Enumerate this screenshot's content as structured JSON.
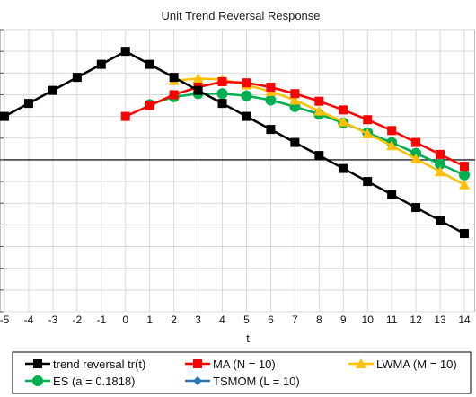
{
  "chart_data": {
    "type": "line",
    "title": "Unit Trend Reversal  Response",
    "xlabel": "t",
    "ylabel": "",
    "x": [
      -5,
      -4,
      -3,
      -2,
      -1,
      0,
      1,
      2,
      3,
      4,
      5,
      6,
      7,
      8,
      9,
      10,
      11,
      12,
      13,
      14
    ],
    "x_tick_labels": [
      "-5",
      "-4",
      "-3",
      "-2",
      "-1",
      "0",
      "1",
      "2",
      "3",
      "4",
      "5",
      "6",
      "7",
      "8",
      "9",
      "10",
      "11",
      "12",
      "13",
      "14"
    ],
    "ylim": [
      -7,
      6
    ],
    "grid": true,
    "legend_position": "bottom",
    "series": [
      {
        "name": "trend reversal tr(t)",
        "color": "#000000",
        "marker": "square",
        "values": [
          2,
          2.6,
          3.2,
          3.8,
          4.4,
          5,
          4.4,
          3.8,
          3.2,
          2.6,
          2,
          1.4,
          0.8,
          0.2,
          -0.4,
          -1,
          -1.6,
          -2.2,
          -2.8,
          -3.4
        ]
      },
      {
        "name": "MA (N = 10)",
        "color": "#ff0000",
        "marker": "square",
        "values": [
          null,
          null,
          null,
          null,
          null,
          2,
          2.5,
          3,
          3.35,
          3.6,
          3.55,
          3.35,
          3.05,
          2.7,
          2.3,
          1.85,
          1.35,
          0.8,
          0.25,
          -0.3
        ]
      },
      {
        "name": "LWMA (M = 10)",
        "color": "#ffc000",
        "marker": "triangle",
        "values": [
          null,
          null,
          null,
          null,
          null,
          null,
          null,
          3.65,
          3.75,
          3.7,
          3.45,
          3.15,
          2.75,
          2.25,
          1.75,
          1.2,
          0.65,
          0.05,
          -0.55,
          -1.15
        ]
      },
      {
        "name": "ES (a = 0.1818)",
        "color": "#00b050",
        "marker": "circle",
        "values": [
          null,
          null,
          null,
          null,
          null,
          null,
          2.55,
          2.9,
          3.05,
          3.05,
          2.95,
          2.75,
          2.45,
          2.1,
          1.7,
          1.25,
          0.8,
          0.3,
          -0.2,
          -0.7
        ]
      },
      {
        "name": "TSMOM (L = 10)",
        "color": "#2e75b6",
        "marker": "diamond",
        "values": [
          null,
          null,
          null,
          null,
          null,
          null,
          null,
          null,
          null,
          null,
          null,
          null,
          null,
          null,
          null,
          null,
          null,
          null,
          null,
          null
        ]
      }
    ]
  }
}
